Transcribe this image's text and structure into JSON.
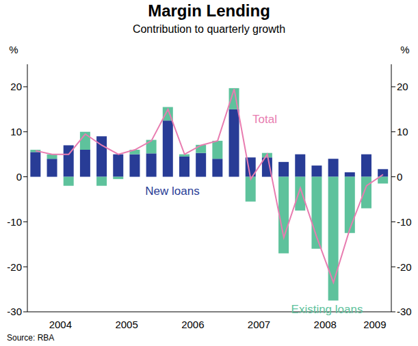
{
  "chart_data": {
    "type": "bar",
    "title": "Margin Lending",
    "subtitle": "Contribution to quarterly growth",
    "y_label": "%",
    "source": "Source: RBA",
    "categories": [
      null,
      "2004",
      null,
      null,
      null,
      "2005",
      null,
      null,
      null,
      "2006",
      null,
      null,
      null,
      "2007",
      null,
      null,
      null,
      "2008",
      null,
      null,
      "2009",
      null
    ],
    "series": [
      {
        "name": "New loans",
        "color": "#283c96",
        "values": [
          5.5,
          4,
          7,
          6,
          9,
          5,
          5,
          5.2,
          12.5,
          4.5,
          5.3,
          4,
          15,
          4.3,
          4.3,
          3.3,
          5,
          2.5,
          4,
          1,
          5,
          1.7
        ]
      },
      {
        "name": "Existing loans",
        "color": "#5ec29c",
        "values": [
          0.5,
          1,
          -2,
          4,
          -2,
          -0.5,
          1,
          3,
          3,
          0.5,
          1.8,
          4,
          4.7,
          -5.5,
          1,
          -17,
          -7.5,
          -16,
          -27.5,
          -12.5,
          -7,
          -1.5
        ]
      },
      {
        "name": "Total",
        "type": "line",
        "color": "#e87cb0",
        "values": [
          5.8,
          5,
          5,
          9.5,
          7,
          5,
          6,
          8,
          15,
          5,
          7,
          8,
          19.5,
          -0.5,
          5,
          -13.5,
          -2.5,
          -13.5,
          -23.5,
          -11.5,
          -2,
          0.5
        ]
      }
    ],
    "stacked": true,
    "ylim": [
      -30,
      25
    ],
    "yticks": [
      -30,
      -20,
      -10,
      0,
      10,
      20
    ],
    "grid": false
  }
}
